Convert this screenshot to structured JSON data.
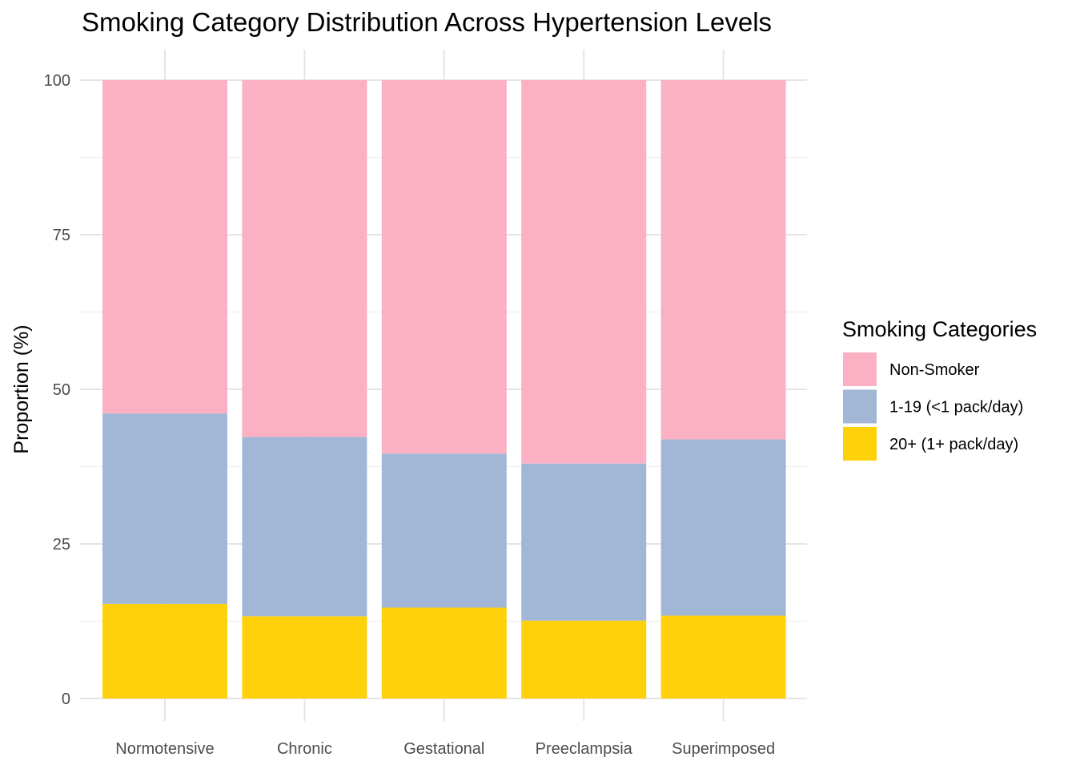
{
  "chart_data": {
    "type": "bar",
    "stacked": true,
    "title": "Smoking Category Distribution Across Hypertension Levels",
    "xlabel": "",
    "ylabel": "Proportion (%)",
    "ylim": [
      0,
      100
    ],
    "yticks": [
      0,
      25,
      50,
      75,
      100
    ],
    "grid": true,
    "legend_position": "right",
    "legend_title": "Smoking Categories",
    "categories": [
      "Normotensive",
      "Chronic",
      "Gestational",
      "Preeclampsia",
      "Superimposed"
    ],
    "series": [
      {
        "name": "20+ (1+ pack/day)",
        "color": "#FFD10A",
        "values": [
          15.3,
          13.3,
          14.7,
          12.6,
          13.4
        ]
      },
      {
        "name": "1-19 (<1 pack/day)",
        "color": "#A2B7D6",
        "values": [
          30.8,
          29.0,
          24.9,
          25.4,
          28.5
        ]
      },
      {
        "name": "Non-Smoker",
        "color": "#FCB0C3",
        "values": [
          53.9,
          57.7,
          60.4,
          62.0,
          58.1
        ]
      }
    ],
    "legend_order": [
      "Non-Smoker",
      "1-19 (<1 pack/day)",
      "20+ (1+ pack/day)"
    ]
  }
}
